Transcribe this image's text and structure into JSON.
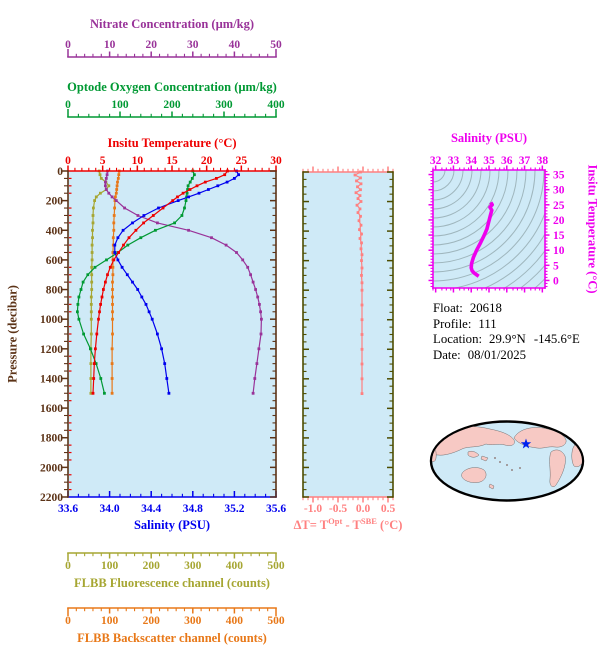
{
  "figure": {
    "info": {
      "float_label": "Float:",
      "float_value": "20618",
      "profile_label": "Profile:",
      "profile_value": "111",
      "location_label": "Location:",
      "location_lat": "29.9°N",
      "location_lon": "-145.6°E",
      "date_label": "Date:",
      "date_value": "08/01/2025"
    },
    "colors": {
      "temperature": "#EE0000",
      "salinity": "#0000EE",
      "oxygen": "#009933",
      "nitrate": "#993399",
      "fluorescence": "#A6A632",
      "backscatter": "#E87818",
      "pressure": "#5C3317",
      "delta_t": "#FF8080",
      "dt_side_axis": "#4D4D00",
      "ts_curve": "#EE00EE",
      "plot_bg": "#CFEAF7",
      "contour": "#9FB6BD",
      "map_land": "#F7C9C4",
      "map_ocean": "#CFEAF7",
      "map_outline": "#000000",
      "star": "#0022EE"
    },
    "map": {
      "style": "pacific-centered world map",
      "marker": "star",
      "marker_color": "#0022EE"
    }
  },
  "chart_data": [
    {
      "type": "line",
      "id": "profile-panel",
      "pressure_axis": {
        "label": "Pressure (decibar)",
        "range": [
          0,
          2200
        ],
        "ticks": [
          0,
          200,
          400,
          600,
          800,
          1000,
          1200,
          1400,
          1600,
          1800,
          2000,
          2200
        ],
        "minor": 50,
        "color": "#5C3317"
      },
      "pressure": [
        0,
        25,
        50,
        75,
        100,
        125,
        150,
        175,
        200,
        250,
        300,
        350,
        400,
        450,
        500,
        550,
        600,
        650,
        700,
        750,
        800,
        850,
        900,
        950,
        1000,
        1100,
        1200,
        1300,
        1400,
        1500
      ],
      "series": [
        {
          "name": "temperature",
          "color": "#EE0000",
          "axis": {
            "label": "Insitu Temperature (°C)",
            "range": [
              0,
              30
            ],
            "ticks": [
              0,
              5,
              10,
              15,
              20,
              25,
              30
            ],
            "minor": 1
          },
          "values": [
            23.0,
            22.6,
            21.4,
            19.8,
            18.6,
            17.6,
            16.6,
            15.8,
            15.1,
            13.7,
            12.3,
            10.9,
            9.8,
            8.8,
            8.0,
            7.3,
            6.6,
            6.1,
            5.7,
            5.4,
            5.1,
            4.9,
            4.7,
            4.55,
            4.4,
            4.15,
            3.95,
            3.8,
            3.7,
            3.6
          ]
        },
        {
          "name": "salinity",
          "color": "#0000EE",
          "axis": {
            "label": "Salinity (PSU)",
            "range": [
              33.6,
              35.6
            ],
            "ticks": [
              33.6,
              34.0,
              34.4,
              34.8,
              35.2,
              35.6
            ],
            "tick_labels": [
              "33.6",
              "34.0",
              "34.4",
              "34.8",
              "35.2",
              "35.6"
            ],
            "minor": 0.1
          },
          "values": [
            35.22,
            35.24,
            35.2,
            35.13,
            35.04,
            34.95,
            34.86,
            34.76,
            34.66,
            34.47,
            34.33,
            34.22,
            34.13,
            34.08,
            34.05,
            34.05,
            34.08,
            34.12,
            34.17,
            34.22,
            34.27,
            34.31,
            34.35,
            34.38,
            34.41,
            34.46,
            34.5,
            34.53,
            34.55,
            34.57
          ]
        },
        {
          "name": "oxygen",
          "color": "#009933",
          "axis": {
            "label": "Optode Oxygen Concentration (µm/kg)",
            "range": [
              0,
              400
            ],
            "ticks": [
              0,
              100,
              200,
              300,
              400
            ],
            "minor": 20
          },
          "values": [
            240,
            243,
            239,
            235,
            231,
            230,
            229,
            228,
            227,
            224,
            219,
            205,
            168,
            140,
            115,
            96,
            74,
            52,
            38,
            29,
            25,
            21,
            19,
            18,
            21,
            30,
            43,
            54,
            63,
            70
          ]
        },
        {
          "name": "nitrate",
          "color": "#993399",
          "axis": {
            "label": "Nitrate Concentration (µm/kg)",
            "range": [
              0,
              50
            ],
            "ticks": [
              0,
              10,
              20,
              30,
              40,
              50
            ],
            "minor": 2
          },
          "values": [
            9.5,
            9.4,
            9.2,
            9.0,
            9.0,
            9.2,
            9.8,
            10.6,
            11.6,
            13.6,
            16.8,
            21.5,
            29.0,
            34.5,
            38.0,
            40.5,
            42.0,
            43.2,
            43.9,
            44.5,
            45.1,
            45.6,
            46.0,
            46.3,
            46.5,
            46.4,
            45.9,
            45.4,
            44.9,
            44.5
          ]
        },
        {
          "name": "fluorescence",
          "color": "#A6A632",
          "axis": {
            "label": "FLBB Fluorescence channel (counts)",
            "range": [
              0,
              500
            ],
            "ticks": [
              0,
              100,
              200,
              300,
              400,
              500
            ],
            "minor": 20
          },
          "values": [
            75,
            77,
            80,
            91,
            98,
            92,
            78,
            68,
            64,
            61,
            60,
            60,
            59,
            59,
            58,
            58,
            58,
            57,
            57,
            57,
            57,
            56,
            56,
            56,
            56,
            56,
            55,
            55,
            55,
            55
          ]
        },
        {
          "name": "backscatter",
          "color": "#E87818",
          "axis": {
            "label": "FLBB Backscatter channel (counts)",
            "range": [
              0,
              500
            ],
            "ticks": [
              0,
              100,
              200,
              300,
              400,
              500
            ],
            "minor": 20
          },
          "values": [
            123,
            122,
            121,
            119,
            118,
            117,
            116,
            114,
            113,
            112,
            111,
            110,
            110,
            109,
            109,
            108,
            108,
            108,
            108,
            107,
            107,
            107,
            107,
            107,
            107,
            107,
            106,
            106,
            106,
            106
          ]
        }
      ]
    },
    {
      "type": "line",
      "id": "delta-t-panel",
      "xaxis": {
        "label_parts": {
          "prefix": "ΔT= T",
          "sup1": "Opt",
          "mid": " - T",
          "sup2": "SBE",
          "suffix": " (°C)"
        },
        "range": [
          -1.2,
          0.6
        ],
        "ticks": [
          -1.0,
          -0.5,
          0.0,
          0.5
        ],
        "tick_labels": [
          "-1.0",
          "-0.5",
          "0.0",
          "0.5"
        ],
        "minor": 0.1,
        "color": "#FF8080"
      },
      "ylim": [
        0,
        2200
      ],
      "pressure": [
        0,
        20,
        40,
        60,
        80,
        100,
        120,
        140,
        160,
        180,
        200,
        225,
        250,
        275,
        300,
        330,
        360,
        390,
        420,
        450,
        480,
        520,
        560,
        600,
        650,
        700,
        750,
        800,
        900,
        1000,
        1100,
        1200,
        1300,
        1400,
        1500
      ],
      "values": [
        -0.05,
        -0.16,
        -0.05,
        -0.13,
        -0.04,
        -0.11,
        -0.05,
        -0.14,
        -0.06,
        -0.1,
        -0.04,
        -0.12,
        -0.06,
        -0.1,
        -0.05,
        -0.08,
        -0.04,
        -0.07,
        -0.03,
        -0.06,
        -0.03,
        -0.04,
        -0.02,
        -0.03,
        -0.02,
        -0.03,
        -0.02,
        -0.02,
        -0.02,
        -0.02,
        -0.02,
        -0.02,
        -0.02,
        -0.02,
        -0.02
      ]
    },
    {
      "type": "line",
      "id": "ts-diagram",
      "xaxis": {
        "label": "Salinity (PSU)",
        "range": [
          32,
          38
        ],
        "ticks": [
          32,
          33,
          34,
          35,
          36,
          37,
          38
        ],
        "minor": 0.25,
        "color": "#EE00EE"
      },
      "yaxis": {
        "label": "Insitu Temperature (°C)",
        "range": [
          0,
          35
        ],
        "ticks": [
          0,
          5,
          10,
          15,
          20,
          25,
          30,
          35
        ],
        "minor": 1,
        "color": "#EE00EE"
      },
      "isopycnal_contours": true,
      "salinity": [
        35.1,
        35.18,
        35.05,
        35.16,
        35.08,
        34.98,
        34.88,
        34.72,
        34.52,
        34.3,
        34.12,
        34.02,
        34.0,
        34.05,
        34.18,
        34.32,
        34.42
      ],
      "temperature": [
        25.8,
        25.0,
        24.2,
        23.2,
        21.5,
        19.2,
        17.0,
        14.8,
        12.4,
        10.0,
        7.6,
        5.6,
        4.2,
        3.2,
        2.4,
        1.8,
        1.4
      ]
    }
  ]
}
